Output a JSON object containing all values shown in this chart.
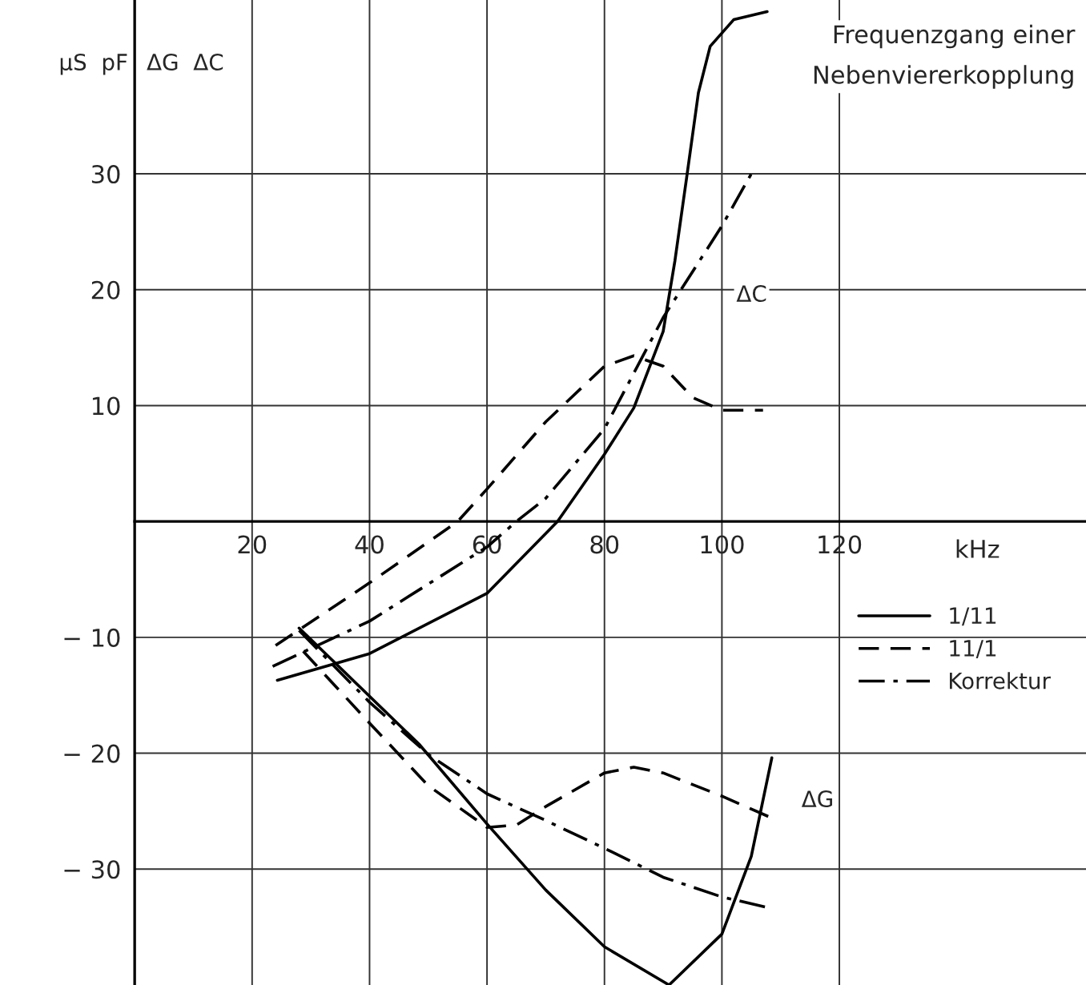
{
  "chart_data": {
    "type": "line",
    "title": "Frequenzgang einer\nNebenviererkopplung",
    "xlabel": "kHz",
    "ylabel": "µS  pF",
    "xlim": [
      0,
      162
    ],
    "ylim": [
      -40,
      45
    ],
    "xticks": [
      20,
      40,
      60,
      80,
      100,
      120
    ],
    "yticks": [
      {
        "value": -30,
        "label": "− 30"
      },
      {
        "value": -20,
        "label": "− 20"
      },
      {
        "value": -10,
        "label": "− 10"
      },
      10,
      20,
      30
    ],
    "grid": true,
    "legend": "right",
    "marker": "none",
    "annotations": [
      "ΔG  ΔC",
      "ΔC",
      "ΔG"
    ],
    "series": [
      {
        "name": "1/11",
        "color": "#000000",
        "line_style": "solid",
        "x": [
          24.3,
          40,
          60,
          72,
          80,
          85,
          90,
          92,
          94,
          96,
          98,
          102,
          107.7
        ],
        "values": [
          -13.7,
          -11.4,
          -6.2,
          0,
          5.8,
          9.8,
          16.4,
          22.5,
          29.7,
          37,
          41,
          43.3,
          44
        ]
      },
      {
        "name": "11/1",
        "color": "#000000",
        "line_style": "dashed",
        "x": [
          24,
          40,
          55,
          60,
          70,
          80,
          85,
          90,
          95,
          100,
          107
        ],
        "values": [
          -10.7,
          -5.3,
          0,
          2.8,
          8.6,
          13.4,
          14.3,
          13.4,
          10.7,
          9.6,
          9.6
        ]
      },
      {
        "name": "Korrektur",
        "color": "#000000",
        "line_style": "dashdot",
        "x": [
          23.5,
          40,
          60,
          65,
          70,
          80,
          90,
          100,
          105
        ],
        "values": [
          -12.5,
          -8.6,
          -2.2,
          0,
          2,
          8,
          17.6,
          25.5,
          30
        ]
      },
      {
        "color": "#000000",
        "line_style": "solid",
        "x": [
          28,
          48.4,
          60,
          70,
          80,
          91,
          100,
          105,
          108.5
        ],
        "values": [
          -9.2,
          -19.2,
          -26.1,
          -31.8,
          -36.7,
          -40,
          -35.6,
          -28.9,
          -20.4
        ]
      },
      {
        "color": "#000000",
        "line_style": "dashed",
        "x": [
          28.7,
          40,
          50,
          60,
          65,
          70,
          80,
          85,
          90,
          100,
          109
        ],
        "values": [
          -11.2,
          -17.4,
          -22.8,
          -26.4,
          -26.2,
          -24.6,
          -21.7,
          -21.2,
          -21.7,
          -23.7,
          -25.7
        ]
      },
      {
        "color": "#000000",
        "line_style": "dashdot",
        "x": [
          28,
          40,
          50,
          60,
          70,
          80,
          90,
          100,
          107.7
        ],
        "values": [
          -9.4,
          -15.6,
          -20.1,
          -23.5,
          -25.8,
          -28.2,
          -30.7,
          -32.4,
          -33.3
        ]
      }
    ]
  }
}
